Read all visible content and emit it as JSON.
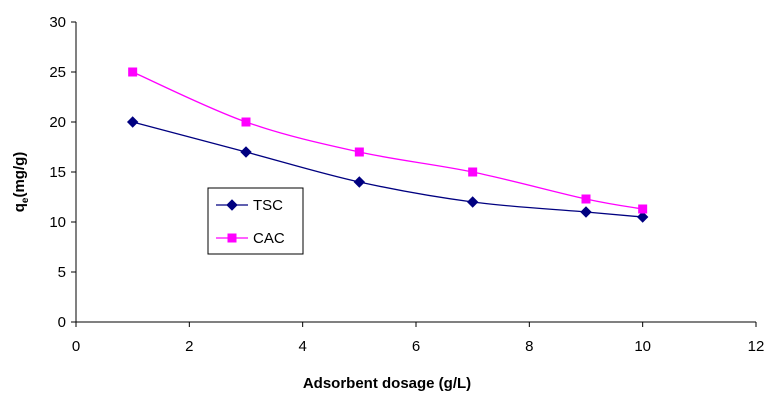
{
  "chart_data": {
    "type": "line",
    "title": "",
    "xlabel": "Adsorbent dosage (g/L)",
    "ylabel": "qe(mg/g)",
    "ylabel_main": "q",
    "ylabel_sub": "e",
    "ylabel_rest": "(mg/g)",
    "xlim": [
      0,
      12
    ],
    "ylim": [
      0,
      30
    ],
    "xticks": [
      0,
      2,
      4,
      6,
      8,
      10,
      12
    ],
    "yticks": [
      0,
      5,
      10,
      15,
      20,
      25,
      30
    ],
    "xtick_labels": [
      "0",
      "2",
      "4",
      "6",
      "8",
      "10",
      "12"
    ],
    "ytick_labels": [
      "0",
      "5",
      "10",
      "15",
      "20",
      "25",
      "30"
    ],
    "grid": false,
    "legend_position": "left-center",
    "series": [
      {
        "name": "TSC",
        "color": "#000080",
        "marker": "diamond",
        "x": [
          1,
          3,
          5,
          7,
          9,
          10
        ],
        "y": [
          20,
          17,
          14,
          12,
          11,
          10.5
        ]
      },
      {
        "name": "CAC",
        "color": "#FF00FF",
        "marker": "square",
        "x": [
          1,
          3,
          5,
          7,
          9,
          10
        ],
        "y": [
          25,
          20,
          17,
          15,
          12.3,
          11.3
        ]
      }
    ]
  }
}
